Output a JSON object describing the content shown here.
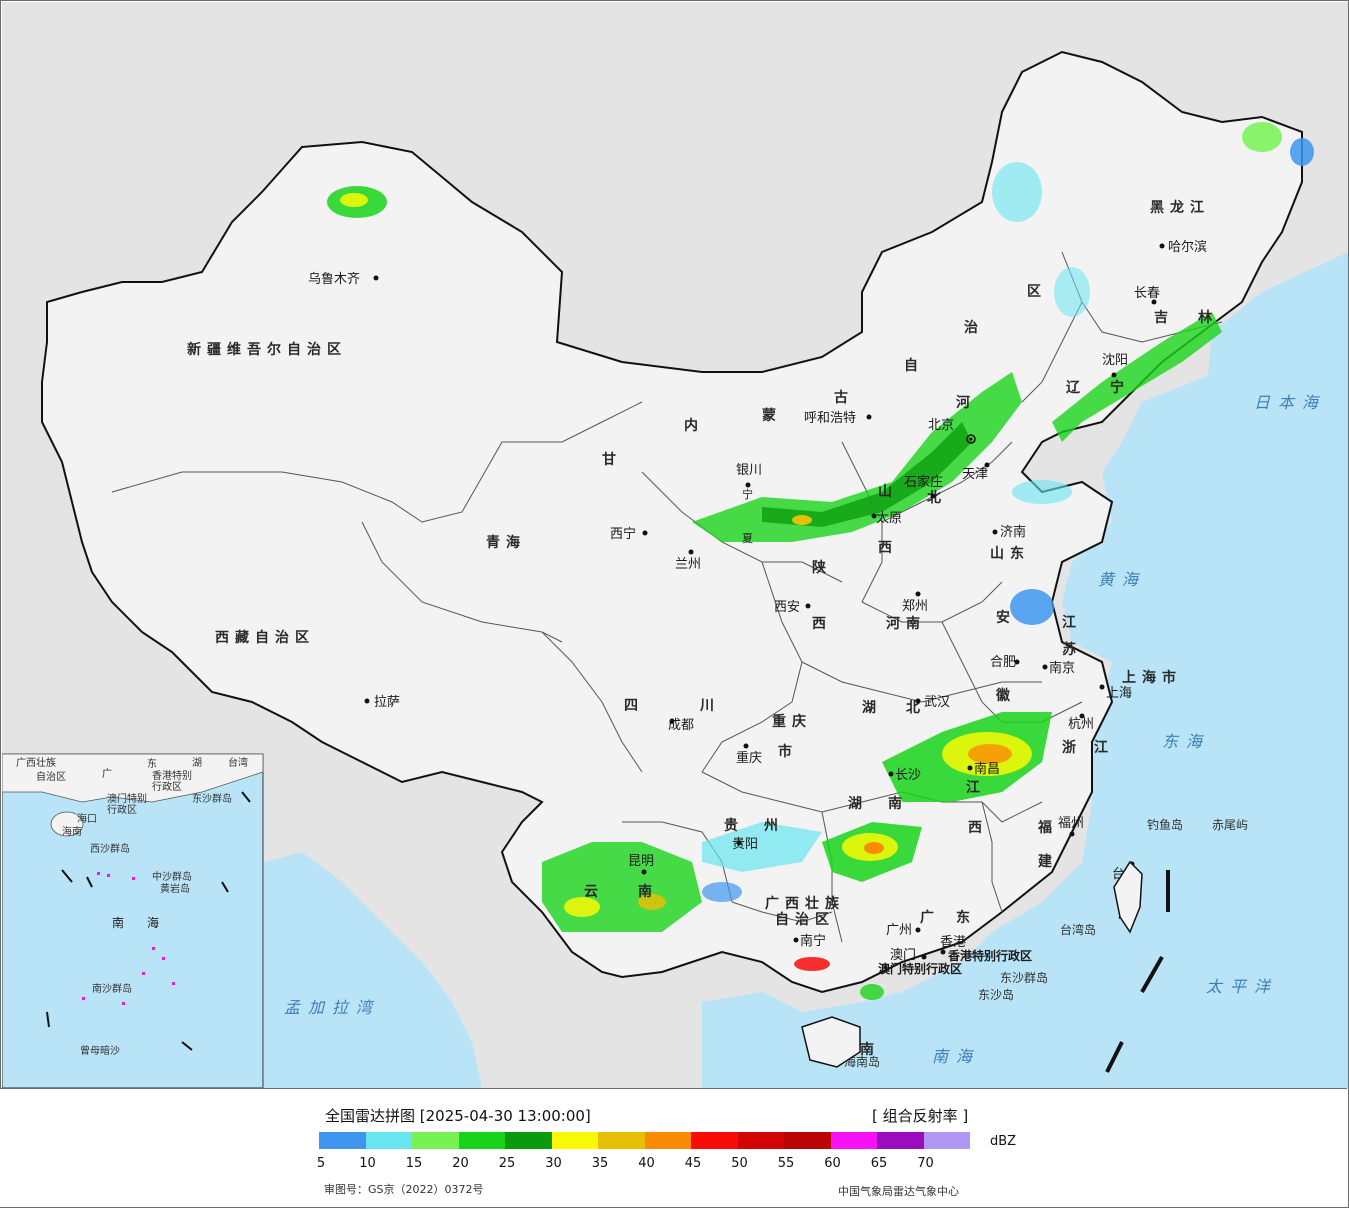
{
  "map": {
    "colors": {
      "land_out": "#e4e4e4",
      "land_in": "#f4f4f4",
      "sea": "#b9e4f7",
      "border": "#111111"
    },
    "provinces": [
      {
        "name": "新疆维吾尔自治区"
      },
      {
        "name": "西藏自治区"
      },
      {
        "name": "青海"
      },
      {
        "name": "甘"
      },
      {
        "name": "内"
      },
      {
        "name": "蒙"
      },
      {
        "name": "古"
      },
      {
        "name": "自"
      },
      {
        "name": "治"
      },
      {
        "name": "区"
      },
      {
        "name": "黑龙江"
      },
      {
        "name": "吉"
      },
      {
        "name": "林"
      },
      {
        "name": "辽"
      },
      {
        "name": "宁"
      },
      {
        "name": "河"
      },
      {
        "name": "北"
      },
      {
        "name": "山"
      },
      {
        "name": "西"
      },
      {
        "name": "山东"
      },
      {
        "name": "河南"
      },
      {
        "name": "陕"
      },
      {
        "name": "西"
      },
      {
        "name": "四"
      },
      {
        "name": "川"
      },
      {
        "name": "重庆"
      },
      {
        "name": "市"
      },
      {
        "name": "湖"
      },
      {
        "name": "北"
      },
      {
        "name": "安"
      },
      {
        "name": "徽"
      },
      {
        "name": "江"
      },
      {
        "name": "苏"
      },
      {
        "name": "上海市"
      },
      {
        "name": "浙"
      },
      {
        "name": "江"
      },
      {
        "name": "湖"
      },
      {
        "name": "南"
      },
      {
        "name": "江"
      },
      {
        "name": "西"
      },
      {
        "name": "福"
      },
      {
        "name": "建"
      },
      {
        "name": "贵"
      },
      {
        "name": "州"
      },
      {
        "name": "云"
      },
      {
        "name": "南"
      },
      {
        "name": "广西壮族"
      },
      {
        "name": "自治区"
      },
      {
        "name": "广"
      },
      {
        "name": "东"
      },
      {
        "name": "台"
      },
      {
        "name": "湾"
      },
      {
        "name": "海"
      },
      {
        "name": "南"
      },
      {
        "name": "香港特别行政区"
      },
      {
        "name": "澳门特别行政区"
      },
      {
        "name": "宁"
      },
      {
        "name": "夏"
      }
    ],
    "cities": [
      {
        "name": "乌鲁木齐"
      },
      {
        "name": "拉萨"
      },
      {
        "name": "西宁"
      },
      {
        "name": "兰州"
      },
      {
        "name": "银川"
      },
      {
        "name": "呼和浩特"
      },
      {
        "name": "北京"
      },
      {
        "name": "天津"
      },
      {
        "name": "石家庄"
      },
      {
        "name": "太原"
      },
      {
        "name": "济南"
      },
      {
        "name": "郑州"
      },
      {
        "name": "西安"
      },
      {
        "name": "成都"
      },
      {
        "name": "重庆"
      },
      {
        "name": "武汉"
      },
      {
        "name": "合肥"
      },
      {
        "name": "南京"
      },
      {
        "name": "上海"
      },
      {
        "name": "杭州"
      },
      {
        "name": "南昌"
      },
      {
        "name": "长沙"
      },
      {
        "name": "福州"
      },
      {
        "name": "台北"
      },
      {
        "name": "贵阳"
      },
      {
        "name": "昆明"
      },
      {
        "name": "南宁"
      },
      {
        "name": "广州"
      },
      {
        "name": "澳门"
      },
      {
        "name": "香港"
      },
      {
        "name": "海口"
      },
      {
        "name": "哈尔滨"
      },
      {
        "name": "长春"
      },
      {
        "name": "沈阳"
      }
    ],
    "seas": [
      {
        "name": "日本海"
      },
      {
        "name": "黄海"
      },
      {
        "name": "东海"
      },
      {
        "name": "太平洋"
      },
      {
        "name": "南海"
      },
      {
        "name": "孟加拉湾"
      }
    ],
    "islands": [
      {
        "name": "钓鱼岛"
      },
      {
        "name": "赤尾屿"
      },
      {
        "name": "台湾岛"
      },
      {
        "name": "东沙群岛"
      },
      {
        "name": "东沙岛"
      },
      {
        "name": "海南岛"
      }
    ],
    "inset": {
      "labels": [
        {
          "name": "广西壮族"
        },
        {
          "name": "自治区"
        },
        {
          "name": "广"
        },
        {
          "name": "东"
        },
        {
          "name": "湖"
        },
        {
          "name": "台湾"
        },
        {
          "name": "香港特别"
        },
        {
          "name": "行政区"
        },
        {
          "name": "澳门特别"
        },
        {
          "name": "行政区"
        },
        {
          "name": "东沙群岛"
        },
        {
          "name": "海口"
        },
        {
          "name": "海南"
        },
        {
          "name": "西沙群岛"
        },
        {
          "name": "中沙群岛"
        },
        {
          "name": "黄岩岛"
        },
        {
          "name": "南"
        },
        {
          "name": "海"
        },
        {
          "name": "南沙群岛"
        },
        {
          "name": "曾母暗沙"
        }
      ]
    }
  },
  "legend": {
    "title": "全国雷达拼图 [2025-04-30 13:00:00]",
    "product": "[ 组合反射率 ]",
    "unit": "dBZ",
    "colors": [
      "#3d95ee",
      "#67e6f0",
      "#77f253",
      "#19d31a",
      "#0a9a0c",
      "#f9f906",
      "#e5c004",
      "#fb8b03",
      "#f90b08",
      "#d30404",
      "#bb0404",
      "#f711f7",
      "#9a0cbe",
      "#b197f5"
    ],
    "ticks": [
      "5",
      "10",
      "15",
      "20",
      "25",
      "30",
      "35",
      "40",
      "45",
      "50",
      "55",
      "60",
      "65",
      "70"
    ],
    "review_no": "审图号：GS京（2022）0372号",
    "credit": "中国气象局雷达气象中心"
  }
}
